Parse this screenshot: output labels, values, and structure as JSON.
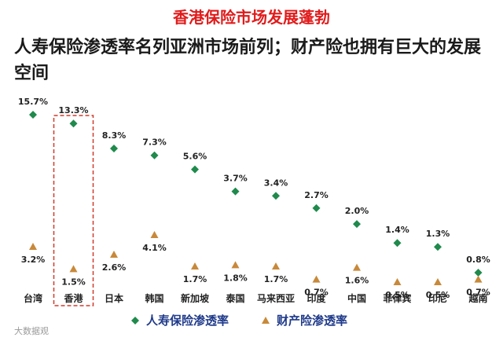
{
  "header": {
    "title": "香港保险市场发展蓬勃",
    "subtitle": "人寿保险渗透率名列亚洲市场前列；财产险也拥有巨大的发展空间"
  },
  "chart_data": {
    "type": "scatter",
    "categories": [
      "台湾",
      "香港",
      "日本",
      "韩国",
      "新加坡",
      "泰国",
      "马来西亚",
      "印度",
      "中国",
      "菲律宾",
      "印尼",
      "越南"
    ],
    "series": [
      {
        "name": "人寿保险渗透率",
        "marker": "diamond",
        "color": "#1f8a4c",
        "values": [
          15.7,
          13.3,
          8.3,
          7.3,
          5.6,
          3.7,
          3.4,
          2.7,
          2.0,
          1.4,
          1.3,
          0.8
        ],
        "labels": [
          "15.7%",
          "13.3%",
          "8.3%",
          "7.3%",
          "5.6%",
          "3.7%",
          "3.4%",
          "2.7%",
          "2.0%",
          "1.4%",
          "1.3%",
          "0.8%"
        ]
      },
      {
        "name": "财产险渗透率",
        "marker": "triangle",
        "color": "#c8893a",
        "values": [
          3.2,
          1.5,
          2.6,
          4.1,
          1.7,
          1.8,
          1.7,
          0.7,
          1.6,
          0.5,
          0.5,
          0.7
        ],
        "labels": [
          "3.2%",
          "1.5%",
          "2.6%",
          "4.1%",
          "1.7%",
          "1.8%",
          "1.7%",
          "0.7%",
          "1.6%",
          "0.5%",
          "0.5%",
          "0.7%"
        ]
      }
    ],
    "highlight_category": "香港",
    "legend_position": "bottom"
  },
  "watermark": "大数据观"
}
